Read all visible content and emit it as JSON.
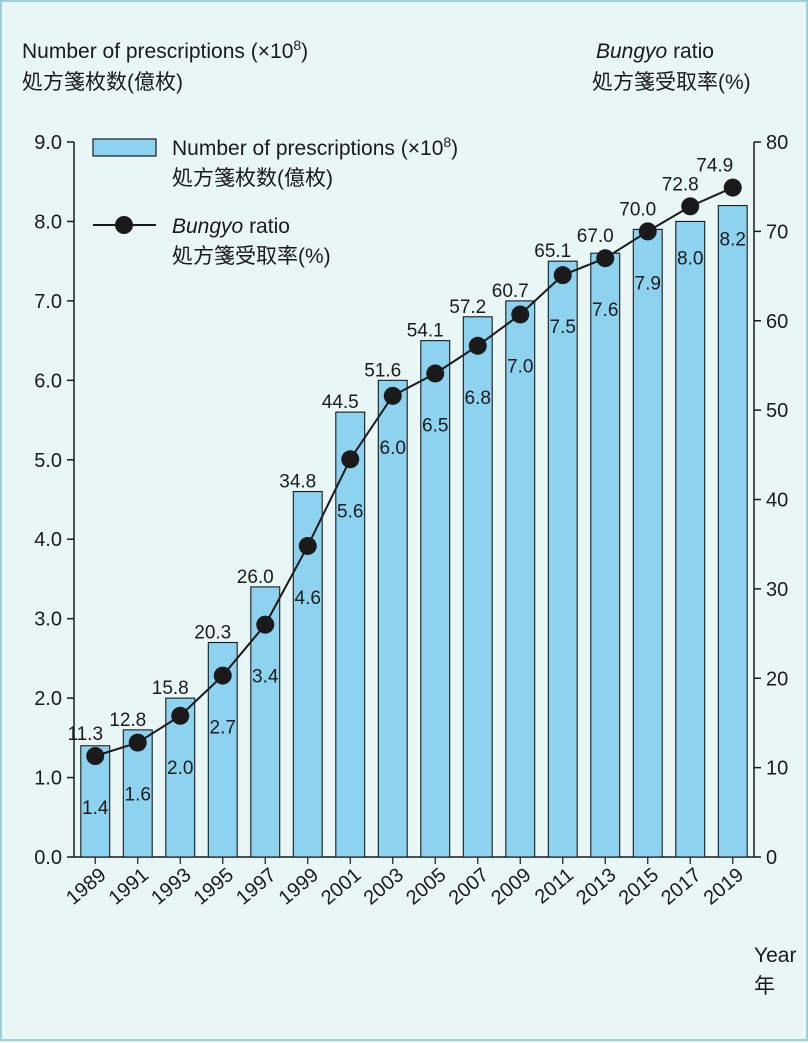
{
  "chart_data": {
    "type": "bar",
    "categories": [
      "1989",
      "1991",
      "1993",
      "1995",
      "1997",
      "1999",
      "2001",
      "2003",
      "2005",
      "2007",
      "2009",
      "2011",
      "2013",
      "2015",
      "2017",
      "2019"
    ],
    "series": [
      {
        "name": "Number of prescriptions (×10⁸) 処方箋枚数(億枚)",
        "type": "bar",
        "axis": "left",
        "values": [
          1.4,
          1.6,
          2.0,
          2.7,
          3.4,
          4.6,
          5.6,
          6.0,
          6.5,
          6.8,
          7.0,
          7.5,
          7.6,
          7.9,
          8.0,
          8.2
        ]
      },
      {
        "name": "Bungyo ratio 処方箋受取率(%)",
        "type": "line",
        "axis": "right",
        "values": [
          11.3,
          12.8,
          15.8,
          20.3,
          26.0,
          34.8,
          44.5,
          51.6,
          54.1,
          57.2,
          60.7,
          65.1,
          67.0,
          70.0,
          72.8,
          74.9
        ]
      }
    ],
    "y_left": {
      "label_line1": "Number of prescriptions (×10",
      "label_sup": "8",
      "label_line1_end": ")",
      "label_line2": "処方箋枚数(億枚)",
      "ylim": [
        0,
        9
      ],
      "ticks": [
        "0.0",
        "1.0",
        "2.0",
        "3.0",
        "4.0",
        "5.0",
        "6.0",
        "7.0",
        "8.0",
        "9.0"
      ]
    },
    "y_right": {
      "label_italic": "Bungyo",
      "label_rest": " ratio",
      "label_line2": "処方箋受取率(%)",
      "ylim": [
        0,
        80
      ],
      "ticks": [
        "0",
        "10",
        "20",
        "30",
        "40",
        "50",
        "60",
        "70",
        "80"
      ]
    },
    "xlabel_line1": "Year",
    "xlabel_line2": "年",
    "legend": {
      "placement": "top-left",
      "bar_label_line1": "Number of prescriptions (×10",
      "bar_label_sup": "8",
      "bar_label_end": ")",
      "bar_label_line2": "処方箋枚数(億枚)",
      "line_label_italic": "Bungyo",
      "line_label_rest": " ratio",
      "line_label_line2": "処方箋受取率(%)"
    },
    "colors": {
      "bar_fill": "#8dd3f0",
      "bar_stroke": "#1a1a1a",
      "line": "#1a1a1a",
      "background": "#e9f6f6",
      "frame": "#9ad0d6"
    },
    "grid": false
  }
}
